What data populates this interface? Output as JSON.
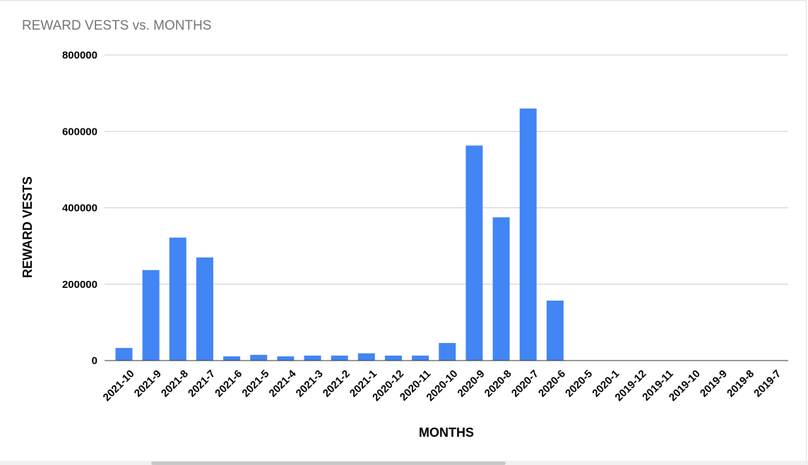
{
  "chart_data": {
    "type": "bar",
    "title": "REWARD VESTS vs. MONTHS",
    "xlabel": "MONTHS",
    "ylabel": "REWARD VESTS",
    "ylim": [
      0,
      800000
    ],
    "yticks": [
      "0",
      "200000",
      "400000",
      "600000",
      "800000"
    ],
    "grid": true,
    "color": "#4285f4",
    "categories": [
      "2021-10",
      "2021-9",
      "2021-8",
      "2021-7",
      "2021-6",
      "2021-5",
      "2021-4",
      "2021-3",
      "2021-2",
      "2021-1",
      "2020-12",
      "2020-11",
      "2020-10",
      "2020-9",
      "2020-8",
      "2020-7",
      "2020-6",
      "2020-5",
      "2020-1",
      "2019-12",
      "2019-11",
      "2019-10",
      "2019-9",
      "2019-8",
      "2019-7"
    ],
    "values": [
      33000,
      237000,
      322000,
      270000,
      11000,
      15000,
      11000,
      13000,
      13000,
      19000,
      13000,
      13000,
      46000,
      563000,
      375000,
      660000,
      157000,
      0,
      0,
      0,
      0,
      0,
      0,
      0,
      800
    ]
  }
}
